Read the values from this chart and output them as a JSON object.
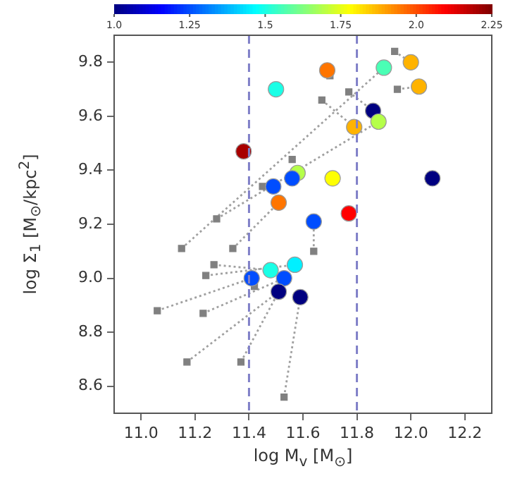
{
  "chart_data": {
    "type": "scatter",
    "xlabel": "log M$_{v}$ [M$_{⊙}$]",
    "ylabel": "log Σ$_{1}$ [M$_{⊙}$/kpc$^{2}$]",
    "xlim": [
      10.9,
      12.3
    ],
    "ylim": [
      8.5,
      9.9
    ],
    "xticks": [
      {
        "value": 11,
        "label": "11.0"
      },
      {
        "value": 11.2,
        "label": "11.2"
      },
      {
        "value": 11.4,
        "label": "11.4"
      },
      {
        "value": 11.6,
        "label": "11.6"
      },
      {
        "value": 11.8,
        "label": "11.8"
      },
      {
        "value": 12,
        "label": "12.0"
      },
      {
        "value": 12.2,
        "label": "12.2"
      }
    ],
    "yticks": [
      {
        "value": 8.6,
        "label": "8.6"
      },
      {
        "value": 8.8,
        "label": "8.8"
      },
      {
        "value": 9,
        "label": "9.0"
      },
      {
        "value": 9.2,
        "label": "9.2"
      },
      {
        "value": 9.4,
        "label": "9.4"
      },
      {
        "value": 9.6,
        "label": "9.6"
      },
      {
        "value": 9.8,
        "label": "9.8"
      }
    ],
    "clim": [
      1.0,
      2.25
    ],
    "cticks": [
      {
        "value": 1,
        "label": "1.0"
      },
      1.25,
      1.5,
      1.75,
      {
        "value": 2,
        "label": "2.0"
      },
      2.25
    ],
    "grid": false,
    "legend": false,
    "ref_lines": [
      {
        "axis": "x",
        "value": 11.4,
        "color": "#8080c8",
        "line_style": "dashed"
      },
      {
        "axis": "x",
        "value": 11.8,
        "color": "#8080c8",
        "line_style": "dashed"
      }
    ],
    "series": [
      {
        "type": "line",
        "color": "#a0a0a0",
        "line_style": "dotted",
        "marker": "none",
        "x": [
          11.77,
          11.86
        ],
        "values": [
          9.69,
          9.62
        ]
      },
      {
        "type": "line",
        "color": "#a0a0a0",
        "line_style": "dotted",
        "marker": "none",
        "x": [
          11.67,
          11.79
        ],
        "values": [
          9.66,
          9.56
        ]
      },
      {
        "type": "line",
        "color": "#a0a0a0",
        "line_style": "dotted",
        "marker": "none",
        "x": [
          11.28,
          11.88
        ],
        "values": [
          9.22,
          9.58
        ]
      },
      {
        "type": "line",
        "color": "#a0a0a0",
        "line_style": "dotted",
        "marker": "none",
        "x": [
          11.15,
          11.9
        ],
        "values": [
          9.11,
          9.78
        ]
      },
      {
        "type": "line",
        "color": "#a0a0a0",
        "line_style": "dotted",
        "marker": "none",
        "x": [
          11.34,
          11.51
        ],
        "values": [
          9.11,
          9.28
        ]
      },
      {
        "type": "line",
        "color": "#a0a0a0",
        "line_style": "dotted",
        "marker": "none",
        "x": [
          11.64,
          11.64
        ],
        "values": [
          9.1,
          9.21
        ]
      },
      {
        "type": "line",
        "color": "#a0a0a0",
        "line_style": "dotted",
        "marker": "none",
        "x": [
          11.94,
          12.0
        ],
        "values": [
          9.84,
          9.8
        ]
      },
      {
        "type": "line",
        "color": "#a0a0a0",
        "line_style": "dotted",
        "marker": "none",
        "x": [
          11.95,
          12.03
        ],
        "values": [
          9.7,
          9.71
        ]
      },
      {
        "type": "line",
        "color": "#a0a0a0",
        "line_style": "dotted",
        "marker": "none",
        "x": [
          11.27,
          11.48
        ],
        "values": [
          9.05,
          9.03
        ]
      },
      {
        "type": "line",
        "color": "#a0a0a0",
        "line_style": "dotted",
        "marker": "none",
        "x": [
          11.24,
          11.57
        ],
        "values": [
          9.01,
          9.05
        ]
      },
      {
        "type": "line",
        "color": "#a0a0a0",
        "line_style": "dotted",
        "marker": "none",
        "x": [
          11.06,
          11.41
        ],
        "values": [
          8.88,
          9.0
        ]
      },
      {
        "type": "line",
        "color": "#a0a0a0",
        "line_style": "dotted",
        "marker": "none",
        "x": [
          11.23,
          11.53
        ],
        "values": [
          8.87,
          9.0
        ]
      },
      {
        "type": "line",
        "color": "#a0a0a0",
        "line_style": "dotted",
        "marker": "none",
        "x": [
          11.17,
          11.51
        ],
        "values": [
          8.69,
          8.95
        ]
      },
      {
        "type": "line",
        "color": "#a0a0a0",
        "line_style": "dotted",
        "marker": "none",
        "x": [
          11.37,
          11.51
        ],
        "values": [
          8.69,
          8.95
        ]
      },
      {
        "type": "line",
        "color": "#a0a0a0",
        "line_style": "dotted",
        "marker": "none",
        "x": [
          11.53,
          11.59
        ],
        "values": [
          8.56,
          8.93
        ]
      },
      {
        "color": "#808080",
        "marker": "square",
        "x": [
          11.7,
          11.77,
          11.67,
          11.56,
          11.45,
          11.28,
          11.15,
          11.34,
          11.64,
          11.94,
          11.95,
          11.27,
          11.24,
          11.06,
          11.23,
          11.17,
          11.37,
          11.53,
          11.42
        ],
        "values": [
          9.75,
          9.69,
          9.66,
          9.44,
          9.34,
          9.22,
          9.11,
          9.11,
          9.1,
          9.84,
          9.7,
          9.05,
          9.01,
          8.88,
          8.87,
          8.69,
          8.69,
          8.56,
          8.97
        ]
      },
      {
        "marker": "circle",
        "x": [
          11.69,
          11.5,
          11.38,
          11.58,
          11.56,
          11.49,
          11.51,
          11.71,
          11.64,
          11.77,
          11.79,
          11.9,
          12.0,
          12.03,
          11.86,
          11.88,
          12.08,
          11.41,
          11.48,
          11.57,
          11.53,
          11.51,
          11.59
        ],
        "values": [
          9.77,
          9.7,
          9.47,
          9.39,
          9.37,
          9.34,
          9.28,
          9.37,
          9.21,
          9.24,
          9.56,
          9.78,
          9.8,
          9.71,
          9.62,
          9.58,
          9.37,
          9.0,
          9.03,
          9.05,
          9.0,
          8.95,
          8.93
        ],
        "colors": [
          "#ff7500",
          "#1affe6",
          "#a80000",
          "#b5ff4a",
          "#004dff",
          "#004dff",
          "#ff7500",
          "#feff01",
          "#004dff",
          "#ff0000",
          "#ffb300",
          "#4affb5",
          "#ffb300",
          "#ffb300",
          "#000080",
          "#b5ff4a",
          "#000080",
          "#004dff",
          "#1affe6",
          "#00f0ff",
          "#004dff",
          "#000080",
          "#000080"
        ]
      }
    ]
  }
}
